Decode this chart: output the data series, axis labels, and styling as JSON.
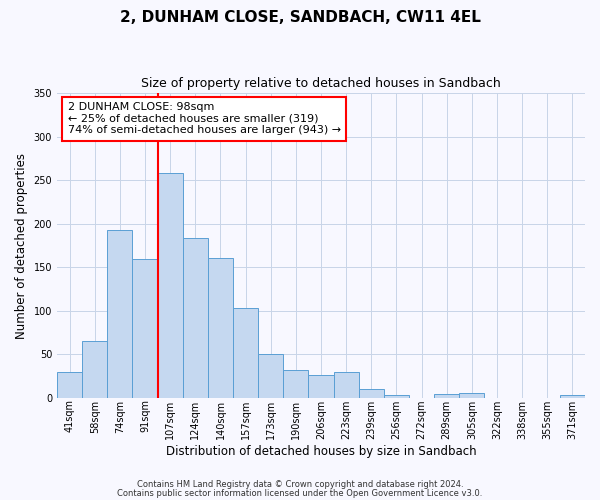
{
  "title": "2, DUNHAM CLOSE, SANDBACH, CW11 4EL",
  "subtitle": "Size of property relative to detached houses in Sandbach",
  "xlabel": "Distribution of detached houses by size in Sandbach",
  "ylabel": "Number of detached properties",
  "categories": [
    "41sqm",
    "58sqm",
    "74sqm",
    "91sqm",
    "107sqm",
    "124sqm",
    "140sqm",
    "157sqm",
    "173sqm",
    "190sqm",
    "206sqm",
    "223sqm",
    "239sqm",
    "256sqm",
    "272sqm",
    "289sqm",
    "305sqm",
    "322sqm",
    "338sqm",
    "355sqm",
    "371sqm"
  ],
  "values": [
    30,
    65,
    193,
    160,
    258,
    184,
    161,
    103,
    50,
    32,
    27,
    30,
    10,
    3,
    0,
    5,
    6,
    0,
    0,
    0,
    3
  ],
  "bar_color": "#c5d8f0",
  "bar_edge_color": "#5a9fd4",
  "ylim": [
    0,
    350
  ],
  "yticks": [
    0,
    50,
    100,
    150,
    200,
    250,
    300,
    350
  ],
  "red_line_index": 3.5,
  "annotation_title": "2 DUNHAM CLOSE: 98sqm",
  "annotation_line1": "← 25% of detached houses are smaller (319)",
  "annotation_line2": "74% of semi-detached houses are larger (943) →",
  "footnote1": "Contains HM Land Registry data © Crown copyright and database right 2024.",
  "footnote2": "Contains public sector information licensed under the Open Government Licence v3.0.",
  "background_color": "#f8f8ff",
  "grid_color": "#c8d4e8",
  "title_fontsize": 11,
  "subtitle_fontsize": 9,
  "ylabel_fontsize": 8.5,
  "xlabel_fontsize": 8.5,
  "tick_fontsize": 7,
  "annot_fontsize": 8,
  "footnote_fontsize": 6
}
